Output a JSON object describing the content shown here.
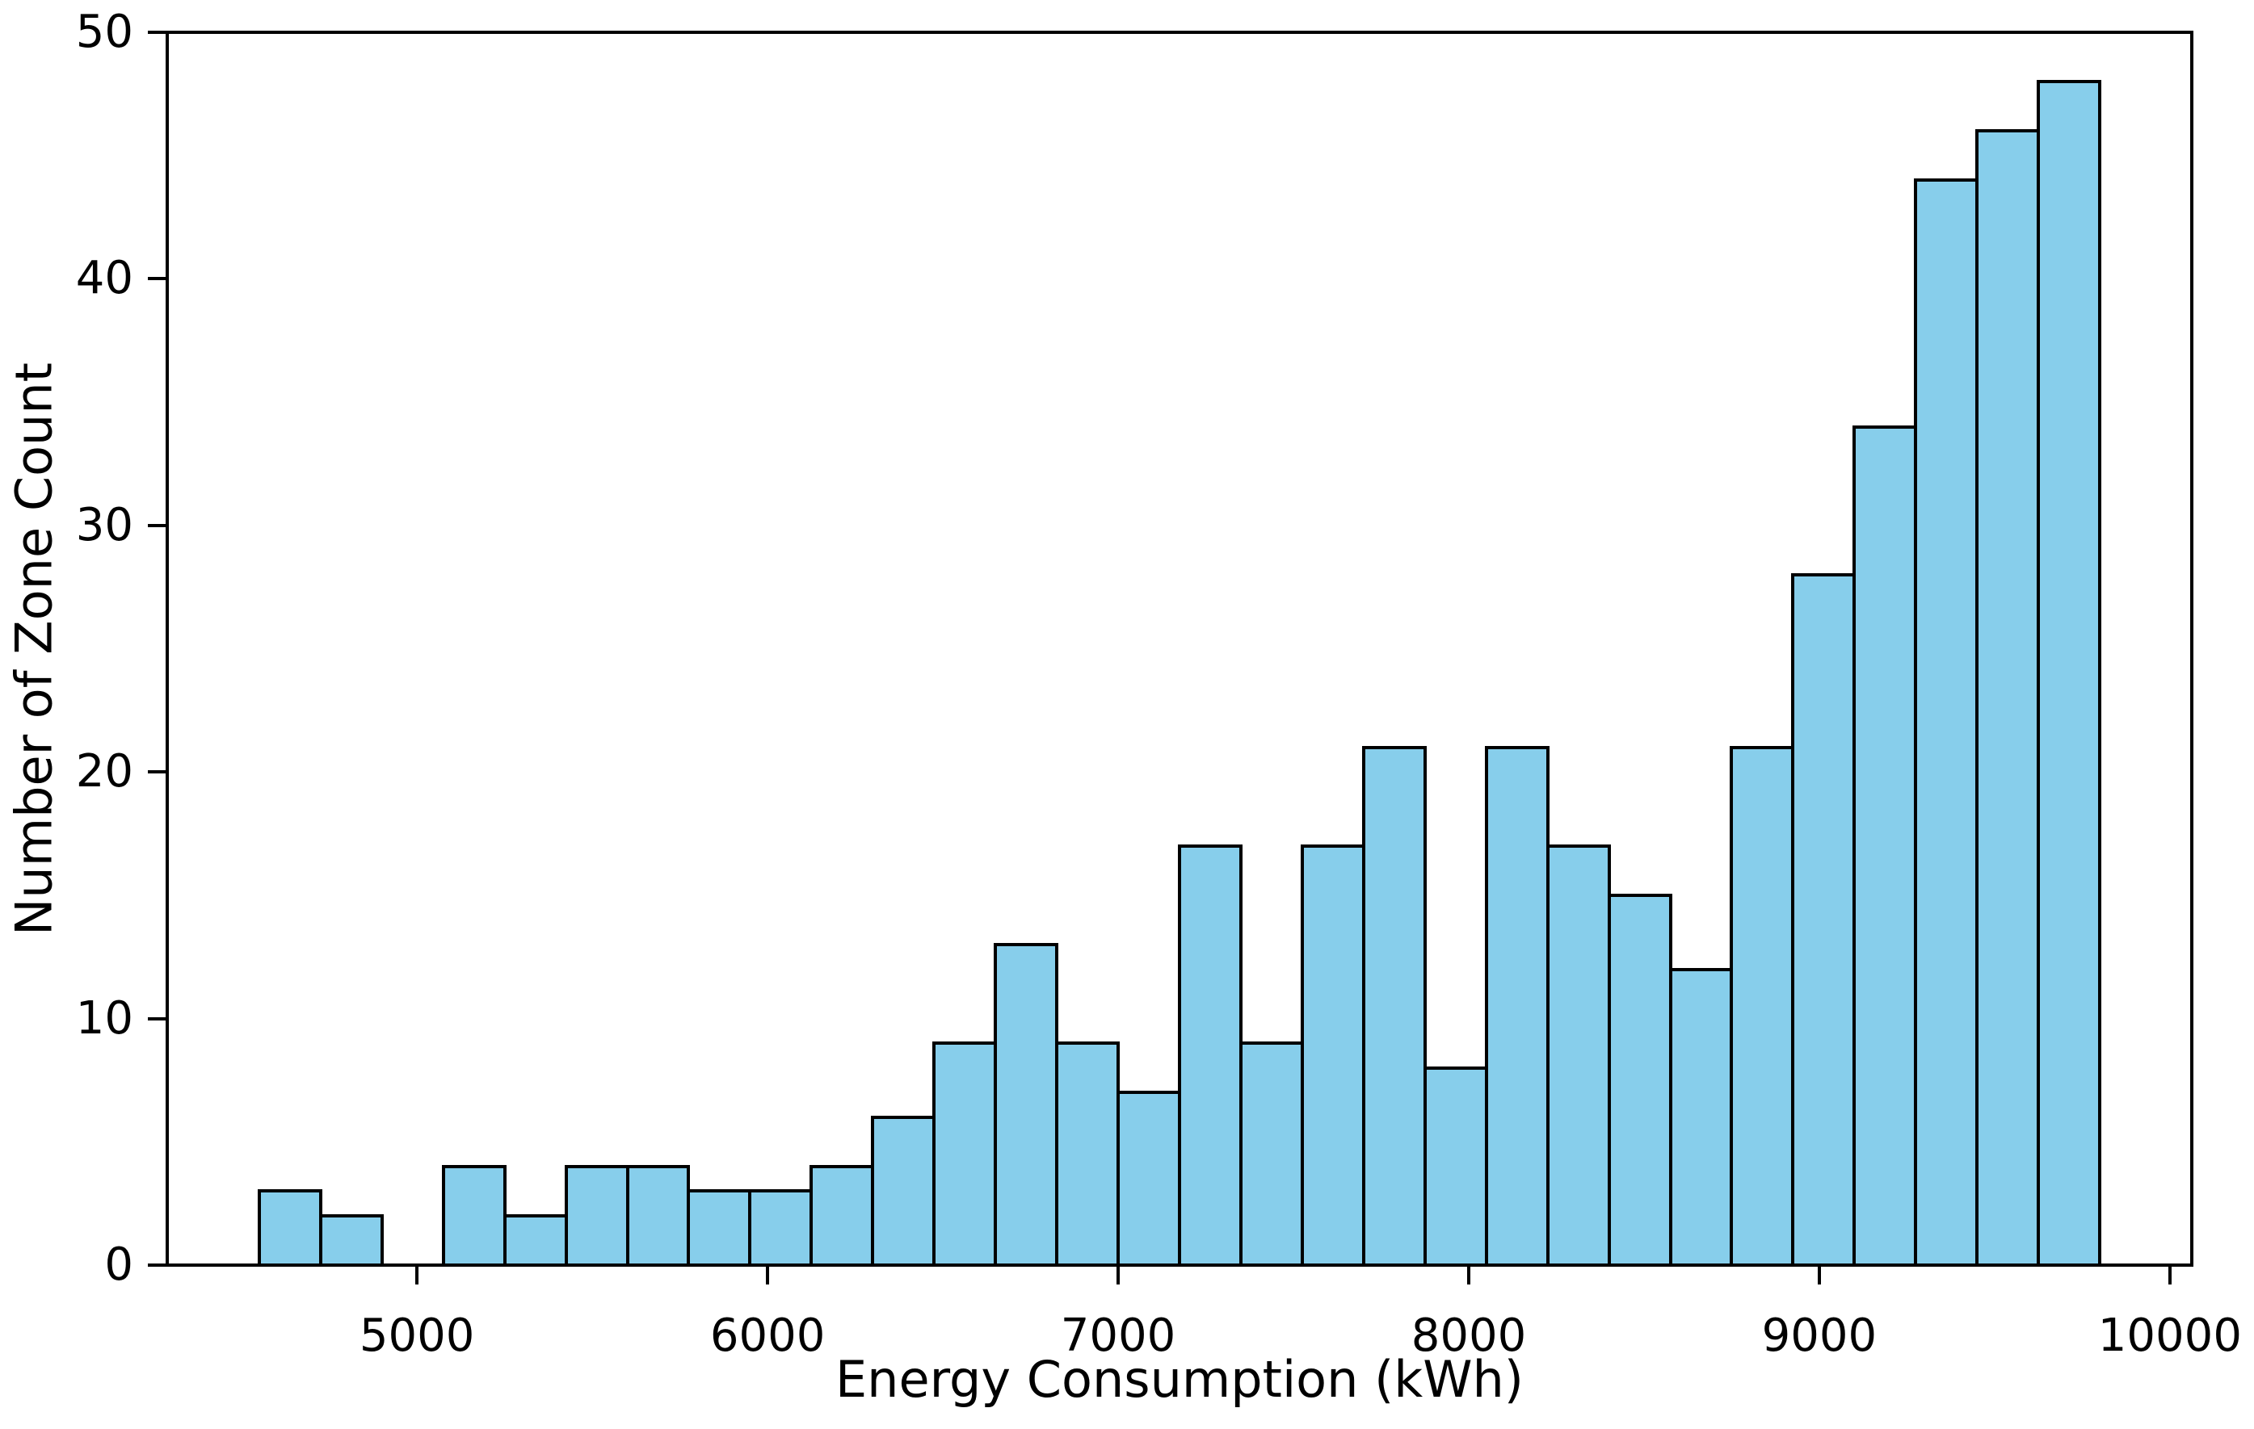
{
  "chart_data": {
    "type": "bar",
    "subtype": "histogram",
    "title": "",
    "xlabel": "Energy Consumption (kWh)",
    "ylabel": "Number of Zone Count",
    "bin_edges": [
      4550,
      4725,
      4900,
      5075,
      5250,
      5425,
      5600,
      5775,
      5950,
      6125,
      6300,
      6475,
      6650,
      6825,
      7000,
      7175,
      7350,
      7525,
      7700,
      7875,
      8050,
      8225,
      8400,
      8575,
      8750,
      8925,
      9100,
      9275,
      9450,
      9625,
      9800
    ],
    "counts": [
      3,
      2,
      0,
      4,
      2,
      4,
      4,
      3,
      3,
      4,
      6,
      9,
      13,
      9,
      7,
      17,
      9,
      17,
      21,
      8,
      21,
      17,
      15,
      12,
      21,
      28,
      34,
      44,
      46,
      48
    ],
    "xticks": [
      5000,
      6000,
      7000,
      8000,
      9000,
      10000
    ],
    "yticks": [
      0,
      10,
      20,
      30,
      40,
      50
    ],
    "xlim": [
      4287.5,
      10062.5
    ],
    "ylim": [
      0,
      50
    ],
    "bar_color": "#87CEEB",
    "edge_color": "#000000",
    "grid": false,
    "legend_position": "none"
  }
}
